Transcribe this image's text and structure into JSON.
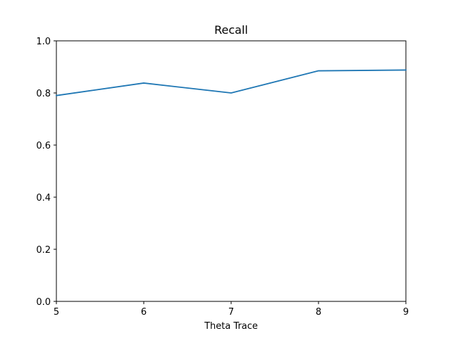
{
  "chart_data": {
    "type": "line",
    "title": "Recall",
    "xlabel": "Theta Trace",
    "ylabel": "",
    "x": [
      5,
      6,
      7,
      8,
      9
    ],
    "series": [
      {
        "values": [
          0.79,
          0.838,
          0.8,
          0.885,
          0.888
        ],
        "color": "#1f77b4"
      }
    ],
    "xlim": [
      5,
      9
    ],
    "ylim": [
      0.0,
      1.0
    ],
    "xticks": [
      5,
      6,
      7,
      8,
      9
    ],
    "xtick_labels": [
      "5",
      "6",
      "7",
      "8",
      "9"
    ],
    "yticks": [
      0.0,
      0.2,
      0.4,
      0.6,
      0.8,
      1.0
    ],
    "ytick_labels": [
      "0.0",
      "0.2",
      "0.4",
      "0.6",
      "0.8",
      "1.0"
    ],
    "grid": false,
    "legend": false
  }
}
